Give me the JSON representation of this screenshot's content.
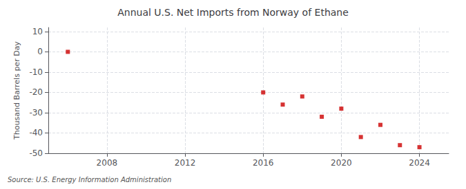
{
  "chart_data": {
    "type": "scatter",
    "title": "Annual U.S. Net Imports from Norway of Ethane",
    "ylabel": "Thousand Barrels per Day",
    "source": "Source: U.S. Energy Information Administration",
    "x": [
      2006,
      2016,
      2017,
      2018,
      2019,
      2020,
      2021,
      2022,
      2023,
      2024
    ],
    "values": [
      0,
      -20,
      -26,
      -22,
      -32,
      -28,
      -42,
      -36,
      -46,
      -47
    ],
    "color": "#cc0000",
    "marker": "square",
    "xlim": [
      2005.0,
      2025.5
    ],
    "xticks": [
      2008,
      2012,
      2016,
      2020,
      2024
    ],
    "ylim": [
      -50,
      12
    ],
    "yticks": [
      -50,
      -40,
      -30,
      -20,
      -10,
      0,
      10
    ],
    "grid": true
  }
}
